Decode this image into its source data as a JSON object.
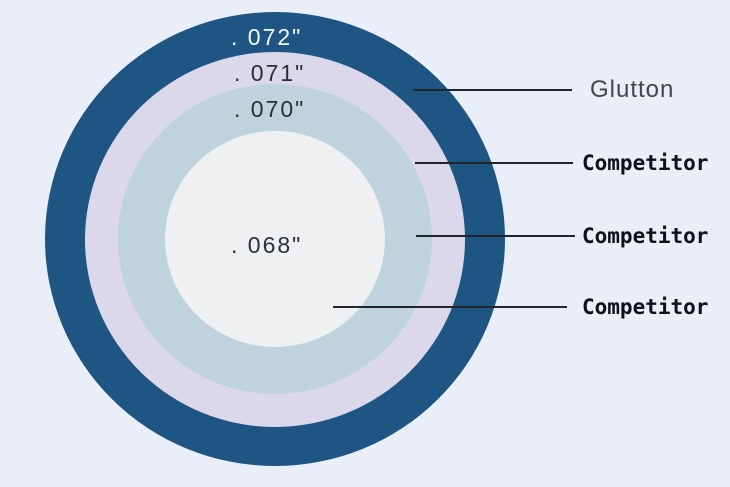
{
  "diagram": {
    "description": "Concentric circle comparison of wire diameters",
    "background_color": "#e9eef8",
    "leader_line_color": "#22262c",
    "rings": [
      {
        "size_label": ". 072\"",
        "brand": "Glutton",
        "color": "#1f5582",
        "label_color": "#f4f8fb"
      },
      {
        "size_label": ". 071\"",
        "brand": "Competitor",
        "color": "#dbd8eb",
        "label_color": "#2a2f3a"
      },
      {
        "size_label": ". 070\"",
        "brand": "Competitor",
        "color": "#bed3dd",
        "label_color": "#2a2f3a"
      },
      {
        "size_label": ". 068\"",
        "brand": "Competitor",
        "color": "#eff0f1",
        "label_color": "#2a2f3a"
      }
    ],
    "callouts": [
      {
        "label": "Glutton",
        "label_color": "#41464f"
      },
      {
        "label": "Competitor",
        "label_color": "#0f1216"
      },
      {
        "label": "Competitor",
        "label_color": "#0f1216"
      },
      {
        "label": "Competitor",
        "label_color": "#0f1216"
      }
    ]
  }
}
